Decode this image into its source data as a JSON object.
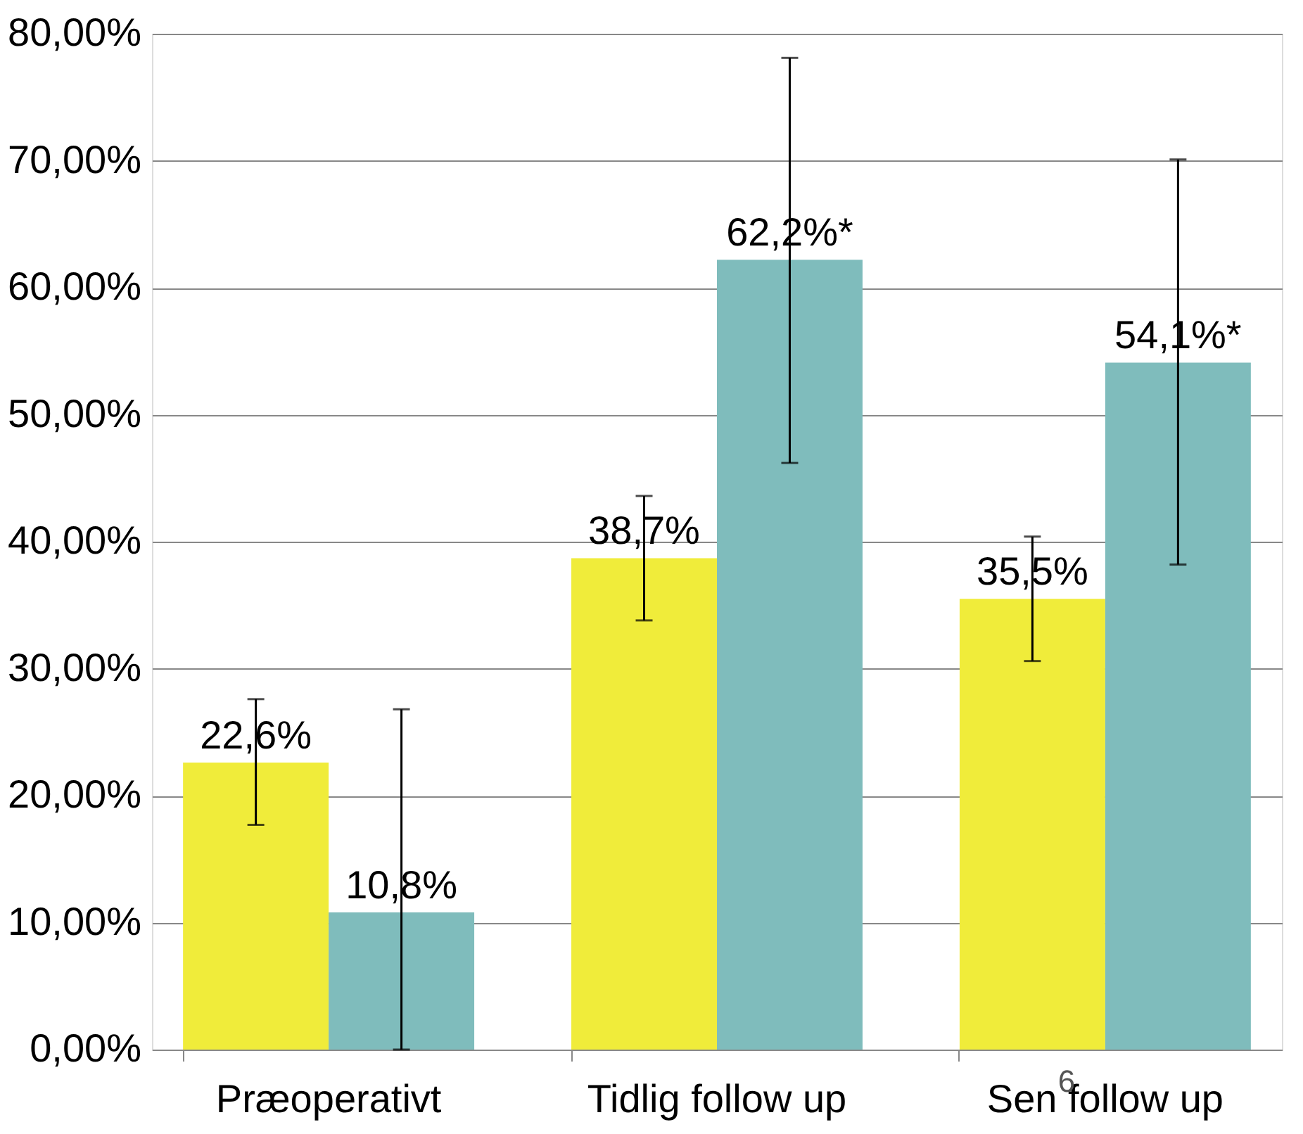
{
  "chart_data": {
    "type": "bar",
    "categories": [
      "Præoperativt",
      "Tidlig follow up",
      "Sen follow up"
    ],
    "series": [
      {
        "color": "#f0ec3a",
        "values": [
          22.6,
          38.7,
          35.5
        ],
        "errors": [
          [
            17.7,
            27.6
          ],
          [
            33.8,
            43.6
          ],
          [
            30.6,
            40.4
          ]
        ],
        "value_labels": [
          "22,6%",
          "38,7%",
          "35,5%"
        ]
      },
      {
        "color": "#7fbcbc",
        "values": [
          10.8,
          62.2,
          54.1
        ],
        "errors": [
          [
            0,
            26.8
          ],
          [
            46.2,
            78.1
          ],
          [
            38.2,
            70.1
          ]
        ],
        "value_labels": [
          "10,8%",
          "62,2%*",
          "54,1%*"
        ]
      }
    ],
    "ylim": [
      0,
      80
    ],
    "yticks": [
      {
        "value": 0,
        "label": "0,00%"
      },
      {
        "value": 10,
        "label": "10,00%"
      },
      {
        "value": 20,
        "label": "20,00%"
      },
      {
        "value": 30,
        "label": "30,00%"
      },
      {
        "value": 40,
        "label": "40,00%"
      },
      {
        "value": 50,
        "label": "50,00%"
      },
      {
        "value": 60,
        "label": "60,00%"
      },
      {
        "value": 70,
        "label": "70,00%"
      },
      {
        "value": 80,
        "label": "80,00%"
      }
    ],
    "grid": "y",
    "legend": false,
    "annotations": [
      "6"
    ]
  }
}
